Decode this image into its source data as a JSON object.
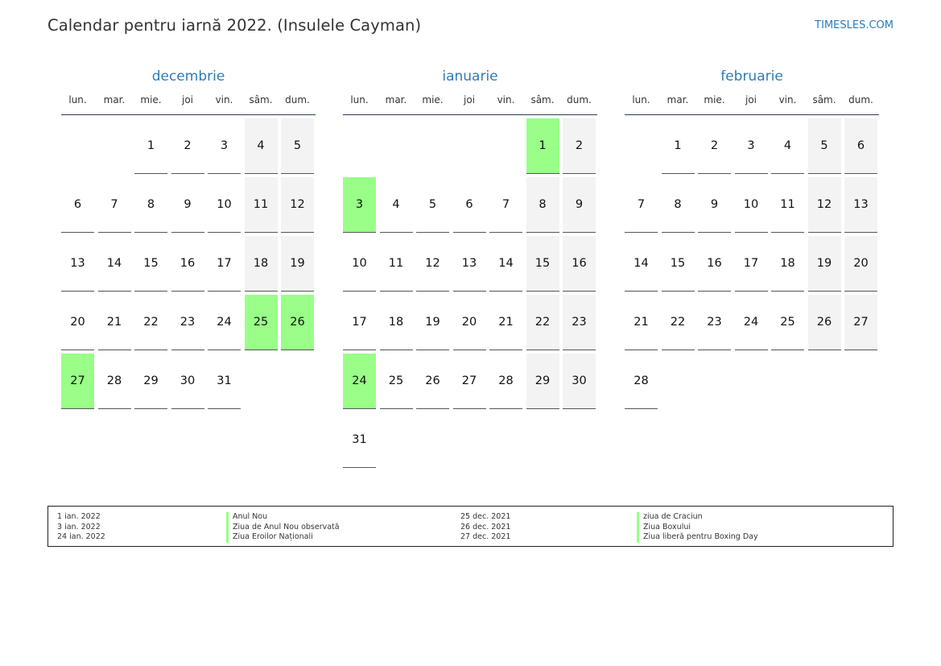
{
  "header": {
    "title": "Calendar pentru iarnă 2022. (Insulele Cayman)",
    "site": "TIMESLES.COM"
  },
  "weekdays": [
    "lun.",
    "mar.",
    "mie.",
    "joi",
    "vin.",
    "sâm.",
    "dum."
  ],
  "months": [
    {
      "name": "decembrie",
      "offset": 2,
      "days": 31,
      "holidays": [
        25,
        26,
        27
      ]
    },
    {
      "name": "ianuarie",
      "offset": 5,
      "days": 31,
      "holidays": [
        1,
        3,
        24
      ]
    },
    {
      "name": "februarie",
      "offset": 1,
      "days": 28,
      "holidays": []
    }
  ],
  "legend": {
    "col1_dates": [
      "1 ian. 2022",
      "3 ian. 2022",
      "24 ian. 2022"
    ],
    "col1_names": [
      "Anul Nou",
      "Ziua de Anul Nou observată",
      "Ziua Eroilor Naționali"
    ],
    "col2_dates": [
      "25 dec. 2021",
      "26 dec. 2021",
      "27 dec. 2021"
    ],
    "col2_names": [
      "ziua de Craciun",
      "Ziua Boxului",
      "Ziua liberă pentru Boxing Day"
    ]
  }
}
